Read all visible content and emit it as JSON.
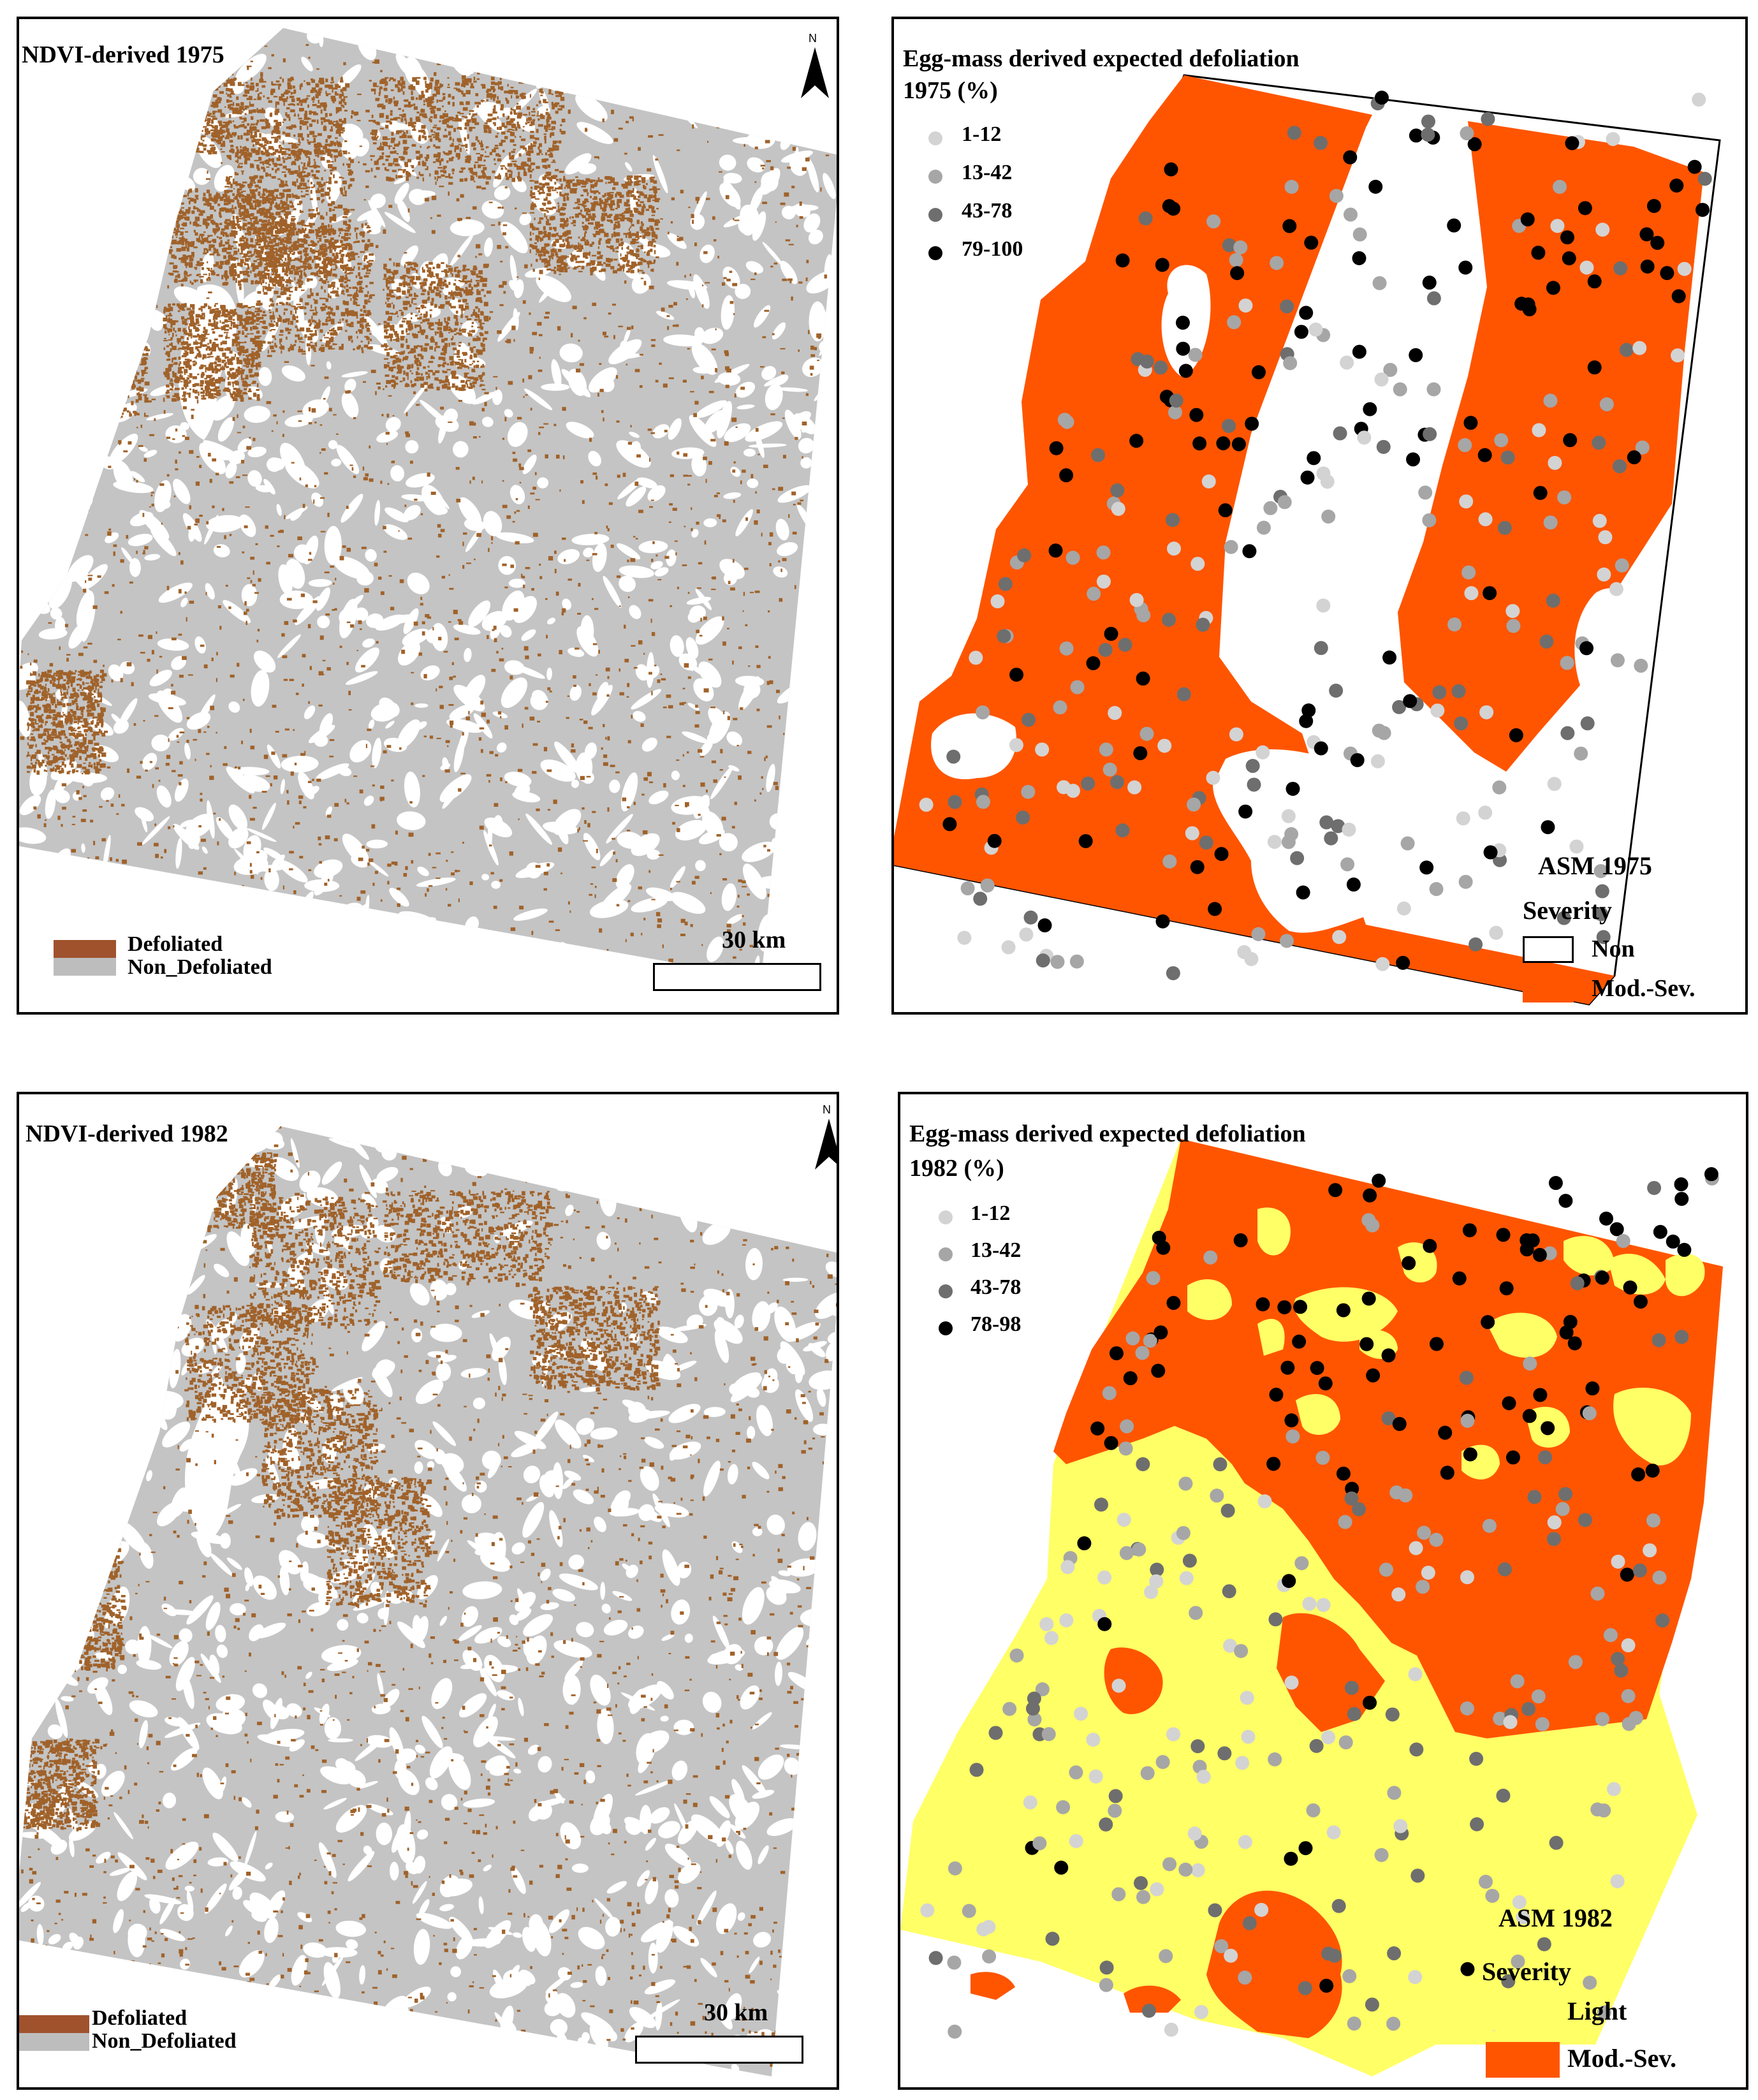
{
  "panels": {
    "ndvi_1975": {
      "title": "NDVI-derived 1975",
      "legend": [
        {
          "label": "Defoliated",
          "color": "#a0522d"
        },
        {
          "label": "Non_Defoliated",
          "color": "#bdbdbd"
        }
      ],
      "scale_label": "30 km",
      "north": "N"
    },
    "egg_1975": {
      "title_line1": "Egg-mass derived expected defoliation",
      "title_line2": "1975 (%)",
      "classes": [
        {
          "label": "1-12",
          "color": "#d3d3d3"
        },
        {
          "label": "13-42",
          "color": "#a6a6a6"
        },
        {
          "label": "43-78",
          "color": "#6e6e6e"
        },
        {
          "label": "79-100",
          "color": "#000000"
        }
      ],
      "asm_title": "ASM 1975",
      "severity_title": "Severity",
      "severity": [
        {
          "label": "Non",
          "color": "#ffffff"
        },
        {
          "label": "Mod.-Sev.",
          "color": "#ff5500"
        }
      ]
    },
    "ndvi_1982": {
      "title": "NDVI-derived 1982",
      "legend": [
        {
          "label": "Defoliated",
          "color": "#a0522d"
        },
        {
          "label": "Non_Defoliated",
          "color": "#bdbdbd"
        }
      ],
      "scale_label": "30 km",
      "north": "N"
    },
    "egg_1982": {
      "title_line1": "Egg-mass derived expected defoliation",
      "title_line2": "1982 (%)",
      "classes": [
        {
          "label": "1-12",
          "color": "#d3d3d3"
        },
        {
          "label": "13-42",
          "color": "#a6a6a6"
        },
        {
          "label": "43-78",
          "color": "#6e6e6e"
        },
        {
          "label": "78-98",
          "color": "#000000"
        }
      ],
      "asm_title": "ASM 1982",
      "severity_title": "Severity",
      "severity": [
        {
          "label": "Light",
          "color": "#ffff66"
        },
        {
          "label": "Mod.-Sev.",
          "color": "#ff5500"
        }
      ]
    }
  },
  "colors": {
    "defoliated": "#a0622a",
    "non_defoliated": "#c4c4c4",
    "mod_sev": "#ff5500",
    "light": "#ffff66"
  }
}
